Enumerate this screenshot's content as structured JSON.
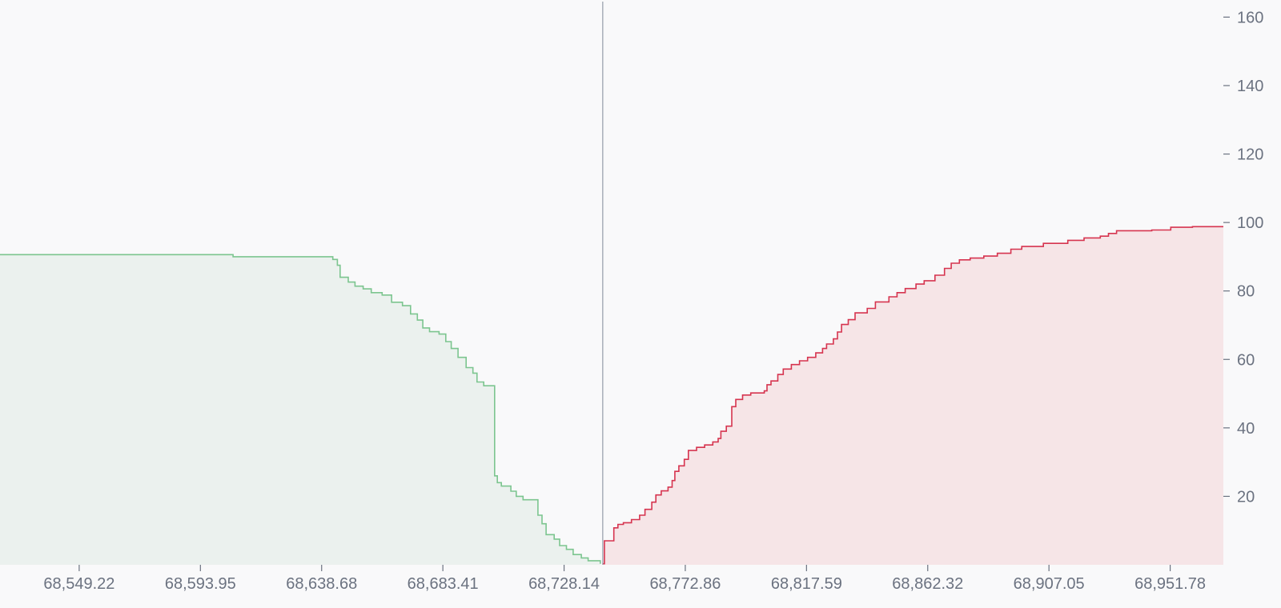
{
  "chart_data": {
    "type": "area",
    "x_ticks": [
      "68,549.22",
      "68,593.95",
      "68,638.68",
      "68,683.41",
      "68,728.14",
      "68,772.86",
      "68,817.59",
      "68,862.32",
      "68,907.05",
      "68,951.78"
    ],
    "y_ticks": [
      "20",
      "40",
      "60",
      "80",
      "100",
      "120",
      "140",
      "160"
    ],
    "xlim": [
      68520.0,
      68971.4
    ],
    "ylim": [
      0,
      165
    ],
    "mid_price": 68742.4,
    "grid": false,
    "y_axis_position": "right",
    "series": [
      {
        "side": "bids",
        "color": "#7cc58f",
        "fill": "#ebf1ee",
        "points": [
          [
            68520.0,
            90.6
          ],
          [
            68606.0,
            90.6
          ],
          [
            68606.0,
            90.0
          ],
          [
            68641.0,
            90.0
          ],
          [
            68642.8,
            89.2
          ],
          [
            68644.5,
            87.5
          ],
          [
            68645.5,
            84.0
          ],
          [
            68648.5,
            82.6
          ],
          [
            68651.0,
            81.4
          ],
          [
            68654.0,
            80.6
          ],
          [
            68657.0,
            79.5
          ],
          [
            68661.0,
            78.8
          ],
          [
            68664.5,
            76.7
          ],
          [
            68668.5,
            75.7
          ],
          [
            68671.5,
            73.3
          ],
          [
            68674.0,
            71.5
          ],
          [
            68676.0,
            69.2
          ],
          [
            68678.5,
            68.1
          ],
          [
            68682.0,
            67.4
          ],
          [
            68684.5,
            65.2
          ],
          [
            68686.5,
            63.2
          ],
          [
            68689.0,
            60.6
          ],
          [
            68692.0,
            57.6
          ],
          [
            68694.5,
            56.0
          ],
          [
            68696.0,
            53.4
          ],
          [
            68698.5,
            52.3
          ],
          [
            68702.5,
            52.0
          ],
          [
            68702.5,
            26.0
          ],
          [
            68703.5,
            24.0
          ],
          [
            68705.0,
            23.0
          ],
          [
            68708.5,
            21.5
          ],
          [
            68710.5,
            20.0
          ],
          [
            68713.0,
            19.0
          ],
          [
            68718.5,
            18.5
          ],
          [
            68718.5,
            14.5
          ],
          [
            68720.0,
            12.0
          ],
          [
            68721.5,
            8.8
          ],
          [
            68724.5,
            7.5
          ],
          [
            68726.5,
            5.6
          ],
          [
            68729.0,
            4.5
          ],
          [
            68731.5,
            3.0
          ],
          [
            68734.5,
            2.0
          ],
          [
            68737.0,
            1.2
          ],
          [
            68741.5,
            0.3
          ]
        ]
      },
      {
        "side": "asks",
        "color": "#d6344f",
        "fill": "#f6e5e7",
        "points": [
          [
            68742.4,
            0.3
          ],
          [
            68743.0,
            7.0
          ],
          [
            68746.0,
            7.0
          ],
          [
            68746.5,
            10.8
          ],
          [
            68748.0,
            11.8
          ],
          [
            68750.0,
            12.3
          ],
          [
            68753.0,
            13.2
          ],
          [
            68756.0,
            14.5
          ],
          [
            68758.0,
            16.2
          ],
          [
            68760.5,
            18.3
          ],
          [
            68762.0,
            20.4
          ],
          [
            68764.0,
            21.6
          ],
          [
            68766.5,
            22.7
          ],
          [
            68768.0,
            24.6
          ],
          [
            68769.0,
            27.3
          ],
          [
            68770.5,
            28.9
          ],
          [
            68772.5,
            30.8
          ],
          [
            68774.0,
            33.4
          ],
          [
            68777.0,
            34.3
          ],
          [
            68780.0,
            35.0
          ],
          [
            68783.0,
            35.9
          ],
          [
            68785.0,
            36.9
          ],
          [
            68786.0,
            39.0
          ],
          [
            68788.0,
            40.5
          ],
          [
            68790.0,
            46.2
          ],
          [
            68791.5,
            48.3
          ],
          [
            68794.0,
            49.6
          ],
          [
            68797.0,
            50.2
          ],
          [
            68802.0,
            50.8
          ],
          [
            68803.0,
            52.6
          ],
          [
            68804.5,
            53.7
          ],
          [
            68807.0,
            55.6
          ],
          [
            68809.0,
            57.2
          ],
          [
            68812.0,
            58.5
          ],
          [
            68815.0,
            59.6
          ],
          [
            68818.0,
            60.6
          ],
          [
            68821.0,
            61.9
          ],
          [
            68823.5,
            63.2
          ],
          [
            68825.0,
            64.5
          ],
          [
            68827.5,
            66.0
          ],
          [
            68829.0,
            68.0
          ],
          [
            68830.5,
            70.2
          ],
          [
            68833.0,
            71.6
          ],
          [
            68835.5,
            73.6
          ],
          [
            68840.0,
            74.9
          ],
          [
            68843.0,
            76.8
          ],
          [
            68848.0,
            78.3
          ],
          [
            68851.0,
            79.5
          ],
          [
            68854.0,
            80.7
          ],
          [
            68858.0,
            82.0
          ],
          [
            68861.0,
            83.0
          ],
          [
            68865.0,
            84.6
          ],
          [
            68868.5,
            86.6
          ],
          [
            68871.0,
            88.1
          ],
          [
            68874.0,
            89.1
          ],
          [
            68878.0,
            89.6
          ],
          [
            68883.0,
            90.2
          ],
          [
            68888.0,
            91.0
          ],
          [
            68893.0,
            92.2
          ],
          [
            68897.0,
            93.0
          ],
          [
            68905.0,
            93.9
          ],
          [
            68914.0,
            94.8
          ],
          [
            68920.0,
            95.5
          ],
          [
            68926.0,
            96.0
          ],
          [
            68929.0,
            96.8
          ],
          [
            68932.0,
            97.6
          ],
          [
            68945.0,
            97.8
          ],
          [
            68952.0,
            98.6
          ],
          [
            68960.0,
            98.8
          ],
          [
            68971.4,
            98.8
          ]
        ]
      }
    ]
  }
}
